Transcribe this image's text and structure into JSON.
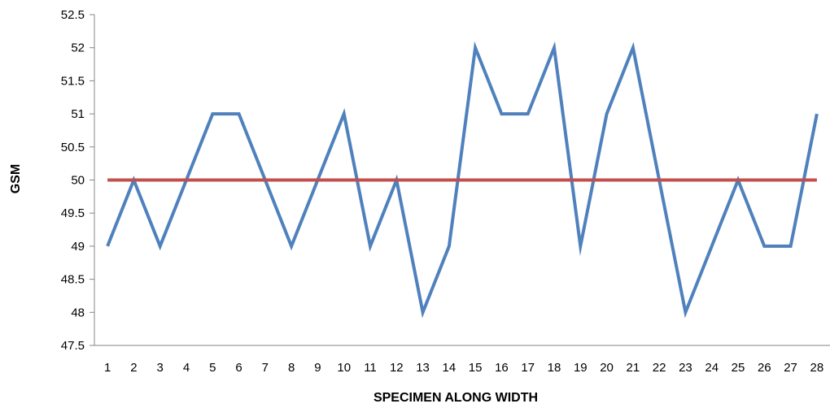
{
  "chart_data": {
    "type": "line",
    "title": "",
    "xlabel": "SPECIMEN ALONG WIDTH",
    "ylabel": "GSM",
    "ylim": [
      47.5,
      52.5
    ],
    "yticks": [
      "47.5",
      "48",
      "48.5",
      "49",
      "49.5",
      "50",
      "50.5",
      "51",
      "51.5",
      "52",
      "52.5"
    ],
    "categories": [
      "1",
      "2",
      "3",
      "4",
      "5",
      "6",
      "7",
      "8",
      "9",
      "10",
      "11",
      "12",
      "13",
      "14",
      "15",
      "16",
      "17",
      "18",
      "19",
      "20",
      "21",
      "22",
      "23",
      "24",
      "25",
      "26",
      "27",
      "28"
    ],
    "grid": false,
    "legend": "none",
    "series": [
      {
        "color": "#4F81BD",
        "values": [
          49,
          50,
          49,
          50,
          51,
          51,
          50,
          49,
          50,
          51,
          49,
          50,
          48,
          49,
          52,
          51,
          51,
          52,
          49,
          51,
          52,
          50,
          48,
          49,
          50,
          49,
          49,
          51
        ]
      },
      {
        "color": "#C0504D",
        "values": [
          50,
          50,
          50,
          50,
          50,
          50,
          50,
          50,
          50,
          50,
          50,
          50,
          50,
          50,
          50,
          50,
          50,
          50,
          50,
          50,
          50,
          50,
          50,
          50,
          50,
          50,
          50,
          50
        ]
      }
    ]
  }
}
